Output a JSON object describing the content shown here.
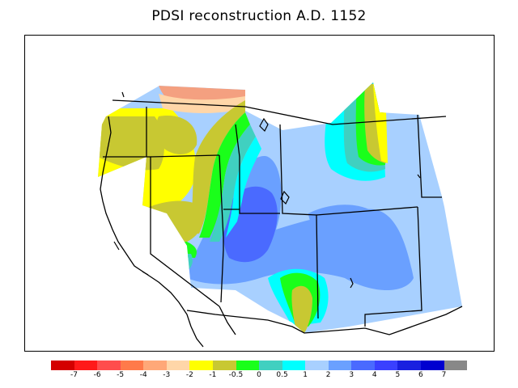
{
  "title": "PDSI reconstruction A.D. 1152",
  "legend": {
    "colors": [
      "#d40000",
      "#ff1a1a",
      "#ff4d4d",
      "#ff7a4a",
      "#ffa878",
      "#ffd6a8",
      "#ffff00",
      "#c8c832",
      "#1aff1a",
      "#40d0c0",
      "#00ffff",
      "#a8d0ff",
      "#6aa0ff",
      "#4a6aff",
      "#3a40ff",
      "#1a20e0",
      "#0000d0",
      "#888888"
    ],
    "ticks": [
      "-7",
      "-6",
      "-5",
      "-4",
      "-3",
      "-2",
      "-1",
      "-0.5",
      "0",
      "0.5",
      "1",
      "2",
      "3",
      "4",
      "5",
      "6",
      "7"
    ]
  },
  "palette": {
    "orange": "#f4a080",
    "yellow": "#ffff00",
    "olive": "#c8c832",
    "green": "#1aff1a",
    "teal": "#40d0c0",
    "cyan": "#00ffff",
    "light_blue": "#a8d0ff",
    "mid_blue": "#6aa0ff",
    "deep_blue": "#4a6aff"
  },
  "map": {
    "region": "Western United States",
    "year": "A.D. 1152"
  }
}
